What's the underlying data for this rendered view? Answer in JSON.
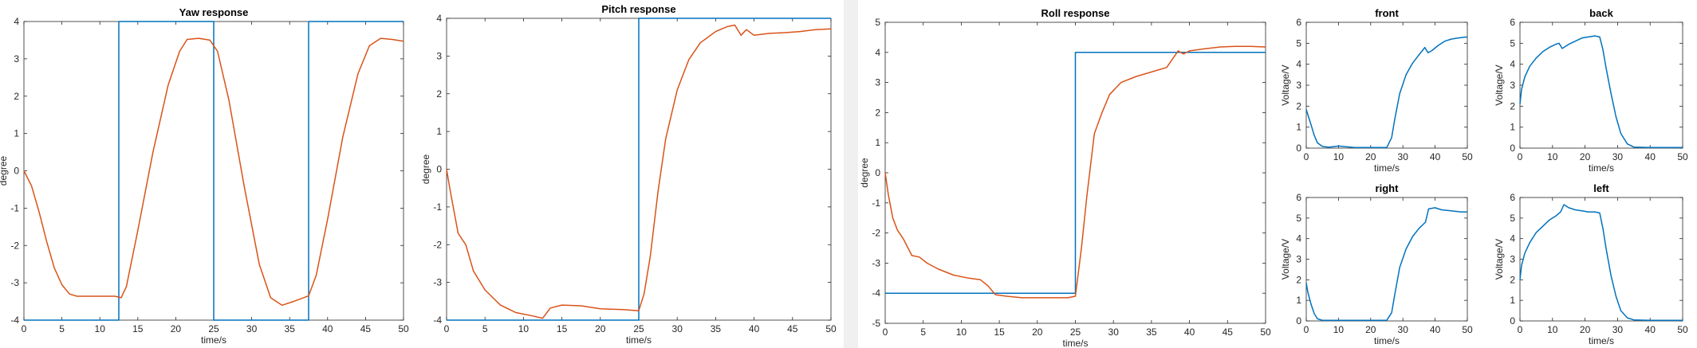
{
  "chart_data": [
    {
      "id": "yaw",
      "type": "line",
      "title": "Yaw response",
      "xlabel": "time/s",
      "ylabel": "degree",
      "xlim": [
        0,
        50
      ],
      "ylim": [
        -4,
        4
      ],
      "xticks": [
        0,
        5,
        10,
        15,
        20,
        25,
        30,
        35,
        40,
        45,
        50
      ],
      "yticks": [
        -4,
        -3,
        -2,
        -1,
        0,
        1,
        2,
        3,
        4
      ],
      "series": [
        {
          "color": "#0072BD",
          "x": [
            0,
            12.5,
            12.5,
            25,
            25,
            37.5,
            37.5,
            50
          ],
          "y": [
            -4,
            -4,
            4,
            4,
            -4,
            -4,
            4,
            4
          ]
        },
        {
          "color": "#D95319",
          "x": [
            0,
            1,
            2,
            3,
            4,
            5,
            6,
            7,
            8,
            10,
            12,
            12.8,
            13.5,
            15,
            17,
            19,
            20.5,
            21.5,
            23,
            24.5,
            25.5,
            27,
            29,
            31,
            32.5,
            34,
            35.5,
            37.5,
            38.5,
            40,
            42,
            44,
            45.5,
            47,
            48.5,
            50
          ],
          "y": [
            0,
            -0.4,
            -1.1,
            -1.9,
            -2.6,
            -3.05,
            -3.3,
            -3.36,
            -3.36,
            -3.36,
            -3.36,
            -3.4,
            -3.1,
            -1.6,
            0.5,
            2.3,
            3.2,
            3.52,
            3.55,
            3.5,
            3.2,
            1.9,
            -0.4,
            -2.5,
            -3.4,
            -3.6,
            -3.5,
            -3.35,
            -2.8,
            -1.3,
            0.9,
            2.6,
            3.35,
            3.55,
            3.52,
            3.47
          ]
        }
      ]
    },
    {
      "id": "pitch",
      "type": "line",
      "title": "Pitch response",
      "xlabel": "time/s",
      "ylabel": "degree",
      "xlim": [
        0,
        50
      ],
      "ylim": [
        -4,
        4
      ],
      "xticks": [
        0,
        5,
        10,
        15,
        20,
        25,
        30,
        35,
        40,
        45,
        50
      ],
      "yticks": [
        -4,
        -3,
        -2,
        -1,
        0,
        1,
        2,
        3,
        4
      ],
      "series": [
        {
          "color": "#0072BD",
          "x": [
            0,
            25,
            25,
            50
          ],
          "y": [
            -4,
            -4,
            4,
            4
          ]
        },
        {
          "color": "#D95319",
          "x": [
            0,
            0.5,
            1.5,
            2.5,
            3.5,
            5,
            7,
            9,
            11,
            12.5,
            13.5,
            15,
            17.5,
            20,
            23,
            25,
            25.7,
            26.5,
            27.5,
            28.5,
            30,
            31.5,
            33,
            35,
            36.5,
            37.5,
            38.3,
            39,
            40,
            42,
            44,
            46,
            48,
            50
          ],
          "y": [
            0,
            -0.6,
            -1.7,
            -2.0,
            -2.7,
            -3.2,
            -3.6,
            -3.8,
            -3.88,
            -3.95,
            -3.68,
            -3.6,
            -3.62,
            -3.7,
            -3.72,
            -3.75,
            -3.3,
            -2.3,
            -0.6,
            0.8,
            2.1,
            2.9,
            3.35,
            3.65,
            3.78,
            3.82,
            3.55,
            3.7,
            3.55,
            3.6,
            3.62,
            3.65,
            3.7,
            3.72
          ]
        }
      ]
    },
    {
      "id": "roll",
      "type": "line",
      "title": "Roll response",
      "xlabel": "time/s",
      "ylabel": "degree",
      "xlim": [
        0,
        50
      ],
      "ylim": [
        -5,
        5
      ],
      "xticks": [
        0,
        5,
        10,
        15,
        20,
        25,
        30,
        35,
        40,
        45,
        50
      ],
      "yticks": [
        -5,
        -4,
        -3,
        -2,
        -1,
        0,
        1,
        2,
        3,
        4,
        5
      ],
      "series": [
        {
          "color": "#0072BD",
          "x": [
            0,
            25,
            25,
            50
          ],
          "y": [
            -4,
            -4,
            4,
            4
          ]
        },
        {
          "color": "#D95319",
          "x": [
            0,
            0.4,
            1,
            1.6,
            2.4,
            3.5,
            4.5,
            5.5,
            7,
            9,
            11,
            12.5,
            13.5,
            14.5,
            16,
            18,
            20,
            22,
            24,
            25,
            25.8,
            26.5,
            27.5,
            28.5,
            29.5,
            31,
            33,
            35,
            37,
            38.5,
            39.2,
            40,
            42,
            44,
            46,
            48,
            50
          ],
          "y": [
            0,
            -0.7,
            -1.5,
            -1.9,
            -2.2,
            -2.75,
            -2.8,
            -3.0,
            -3.2,
            -3.4,
            -3.5,
            -3.55,
            -3.75,
            -4.05,
            -4.1,
            -4.15,
            -4.15,
            -4.15,
            -4.15,
            -4.1,
            -2.5,
            -0.8,
            1.3,
            2.0,
            2.6,
            3.0,
            3.2,
            3.35,
            3.5,
            4.05,
            3.95,
            4.05,
            4.12,
            4.18,
            4.2,
            4.2,
            4.18
          ]
        }
      ]
    },
    {
      "id": "front",
      "type": "line",
      "title": "front",
      "xlabel": "time/s",
      "ylabel": "Voltage/V",
      "xlim": [
        0,
        50
      ],
      "ylim": [
        0,
        6
      ],
      "xticks": [
        0,
        10,
        20,
        30,
        40,
        50
      ],
      "yticks": [
        0,
        1,
        2,
        3,
        4,
        5,
        6
      ],
      "series": [
        {
          "color": "#0072BD",
          "x": [
            0,
            0.5,
            1.5,
            2.5,
            3.5,
            5,
            7,
            10,
            15,
            20,
            25,
            26.5,
            27.5,
            29,
            31,
            33,
            35,
            36.8,
            37.8,
            39,
            41,
            43,
            45,
            47,
            50
          ],
          "y": [
            1.85,
            1.6,
            1.1,
            0.6,
            0.25,
            0.08,
            0.04,
            0.1,
            0.03,
            0.03,
            0.03,
            0.5,
            1.4,
            2.6,
            3.5,
            4.05,
            4.45,
            4.8,
            4.55,
            4.65,
            4.9,
            5.1,
            5.2,
            5.25,
            5.3
          ]
        }
      ]
    },
    {
      "id": "back",
      "type": "line",
      "title": "back",
      "xlabel": "time/s",
      "ylabel": "Voltage/V",
      "xlim": [
        0,
        50
      ],
      "ylim": [
        0,
        6
      ],
      "xticks": [
        0,
        10,
        20,
        30,
        40,
        50
      ],
      "yticks": [
        0,
        1,
        2,
        3,
        4,
        5,
        6
      ],
      "series": [
        {
          "color": "#0072BD",
          "x": [
            0,
            0.5,
            1.5,
            3,
            5,
            7,
            9,
            11,
            12,
            13,
            15,
            17,
            19,
            21,
            23,
            24.5,
            25.5,
            26.5,
            28,
            29.5,
            31,
            33,
            35,
            40,
            45,
            50
          ],
          "y": [
            2.1,
            2.8,
            3.4,
            3.9,
            4.3,
            4.6,
            4.8,
            4.95,
            5.0,
            4.75,
            4.95,
            5.1,
            5.25,
            5.3,
            5.35,
            5.3,
            4.7,
            3.8,
            2.6,
            1.5,
            0.7,
            0.2,
            0.05,
            0.03,
            0.03,
            0.03
          ]
        }
      ]
    },
    {
      "id": "right",
      "type": "line",
      "title": "right",
      "xlabel": "time/s",
      "ylabel": "Voltage/V",
      "xlim": [
        0,
        50
      ],
      "ylim": [
        0,
        6
      ],
      "xticks": [
        0,
        10,
        20,
        30,
        40,
        50
      ],
      "yticks": [
        0,
        1,
        2,
        3,
        4,
        5,
        6
      ],
      "series": [
        {
          "color": "#0072BD",
          "x": [
            0,
            0.5,
            1.5,
            2.5,
            3.5,
            5,
            7,
            10,
            15,
            20,
            25,
            26.5,
            27.5,
            29,
            31,
            33,
            35,
            37,
            38,
            40,
            42,
            45,
            48,
            50
          ],
          "y": [
            1.85,
            1.4,
            0.8,
            0.35,
            0.1,
            0.03,
            0.03,
            0.03,
            0.03,
            0.03,
            0.03,
            0.4,
            1.3,
            2.6,
            3.5,
            4.1,
            4.5,
            4.8,
            5.45,
            5.5,
            5.4,
            5.35,
            5.3,
            5.3
          ]
        }
      ]
    },
    {
      "id": "left",
      "type": "line",
      "title": "left",
      "xlabel": "time/s",
      "ylabel": "Voltage/V",
      "xlim": [
        0,
        50
      ],
      "ylim": [
        0,
        6
      ],
      "xticks": [
        0,
        10,
        20,
        30,
        40,
        50
      ],
      "yticks": [
        0,
        1,
        2,
        3,
        4,
        5,
        6
      ],
      "series": [
        {
          "color": "#0072BD",
          "x": [
            0,
            0.5,
            1.5,
            3,
            5,
            7,
            9,
            11,
            12.5,
            13.5,
            15,
            17,
            19,
            21,
            23,
            24.5,
            25.5,
            26.5,
            28,
            29.5,
            31,
            33,
            35,
            40,
            45,
            50
          ],
          "y": [
            2.0,
            2.7,
            3.3,
            3.8,
            4.3,
            4.6,
            4.9,
            5.1,
            5.3,
            5.65,
            5.5,
            5.4,
            5.35,
            5.3,
            5.3,
            5.25,
            4.5,
            3.5,
            2.2,
            1.2,
            0.5,
            0.15,
            0.05,
            0.03,
            0.03,
            0.03
          ]
        }
      ]
    }
  ]
}
